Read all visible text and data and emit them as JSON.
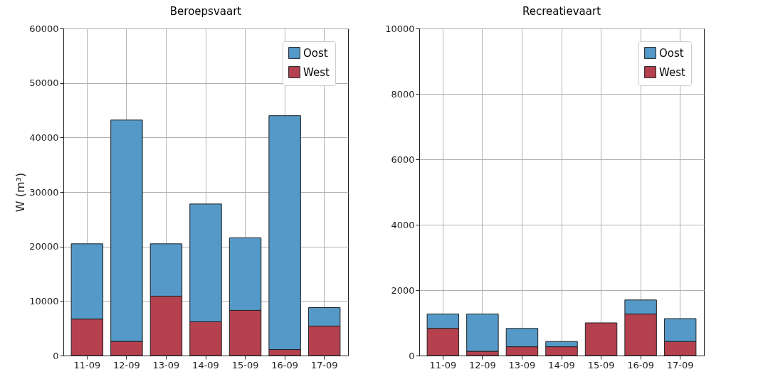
{
  "chart_data": [
    {
      "type": "bar",
      "stacked": true,
      "title": "Beroepsvaart",
      "ylabel": "W (m³)",
      "categories": [
        "11-09",
        "12-09",
        "13-09",
        "14-09",
        "15-09",
        "16-09",
        "17-09"
      ],
      "series": [
        {
          "name": "West",
          "color": "#b5414e",
          "values": [
            6700,
            2600,
            10900,
            6200,
            8300,
            1100,
            5400
          ]
        },
        {
          "name": "Oost",
          "color": "#5599c8",
          "values": [
            13800,
            40600,
            9600,
            21600,
            13300,
            42900,
            3400
          ]
        }
      ],
      "ylim": [
        0,
        60000
      ],
      "yticks": [
        0,
        10000,
        20000,
        30000,
        40000,
        50000,
        60000
      ],
      "grid": true,
      "legend": "top right"
    },
    {
      "type": "bar",
      "stacked": true,
      "title": "Recreatievaart",
      "categories": [
        "11-09",
        "12-09",
        "13-09",
        "14-09",
        "15-09",
        "16-09",
        "17-09"
      ],
      "series": [
        {
          "name": "West",
          "color": "#b5414e",
          "values": [
            830,
            130,
            270,
            270,
            1000,
            1270,
            430
          ]
        },
        {
          "name": "Oost",
          "color": "#5599c8",
          "values": [
            440,
            1140,
            560,
            160,
            null,
            430,
            700
          ]
        }
      ],
      "ylim": [
        0,
        10000
      ],
      "yticks": [
        0,
        2000,
        4000,
        6000,
        8000,
        10000
      ],
      "grid": true,
      "legend": "top right"
    }
  ]
}
